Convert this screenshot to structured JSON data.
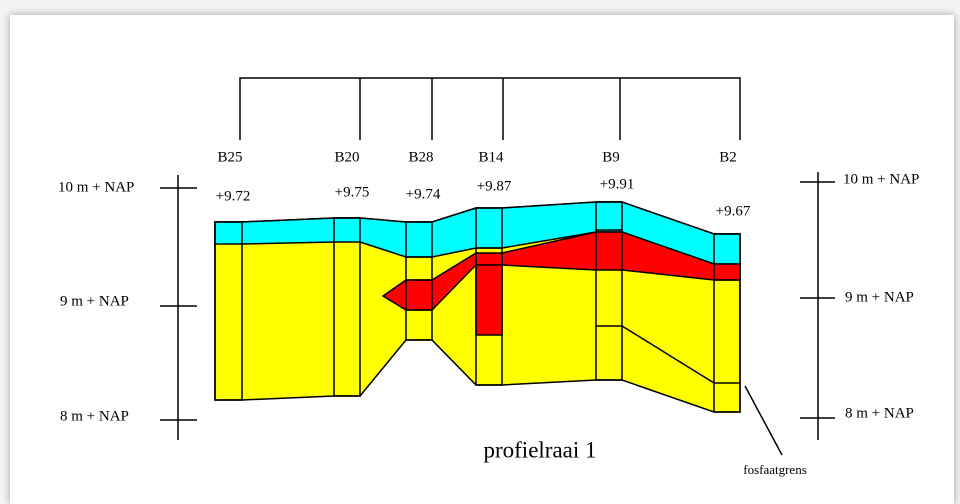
{
  "boreholes": [
    {
      "label": "B25",
      "elevation": "+9.72"
    },
    {
      "label": "B20",
      "elevation": "+9.75"
    },
    {
      "label": "B28",
      "elevation": "+9.74"
    },
    {
      "label": "B14",
      "elevation": "+9.87"
    },
    {
      "label": "B9",
      "elevation": "+9.91"
    },
    {
      "label": "B2",
      "elevation": "+9.67"
    }
  ],
  "left_scale": [
    "10 m + NAP",
    "9 m + NAP",
    "8 m + NAP"
  ],
  "right_scale": [
    "10 m + NAP",
    "9 m + NAP",
    "8 m + NAP"
  ],
  "title": "profielraai 1",
  "annotation": "fosfaatgrens"
}
